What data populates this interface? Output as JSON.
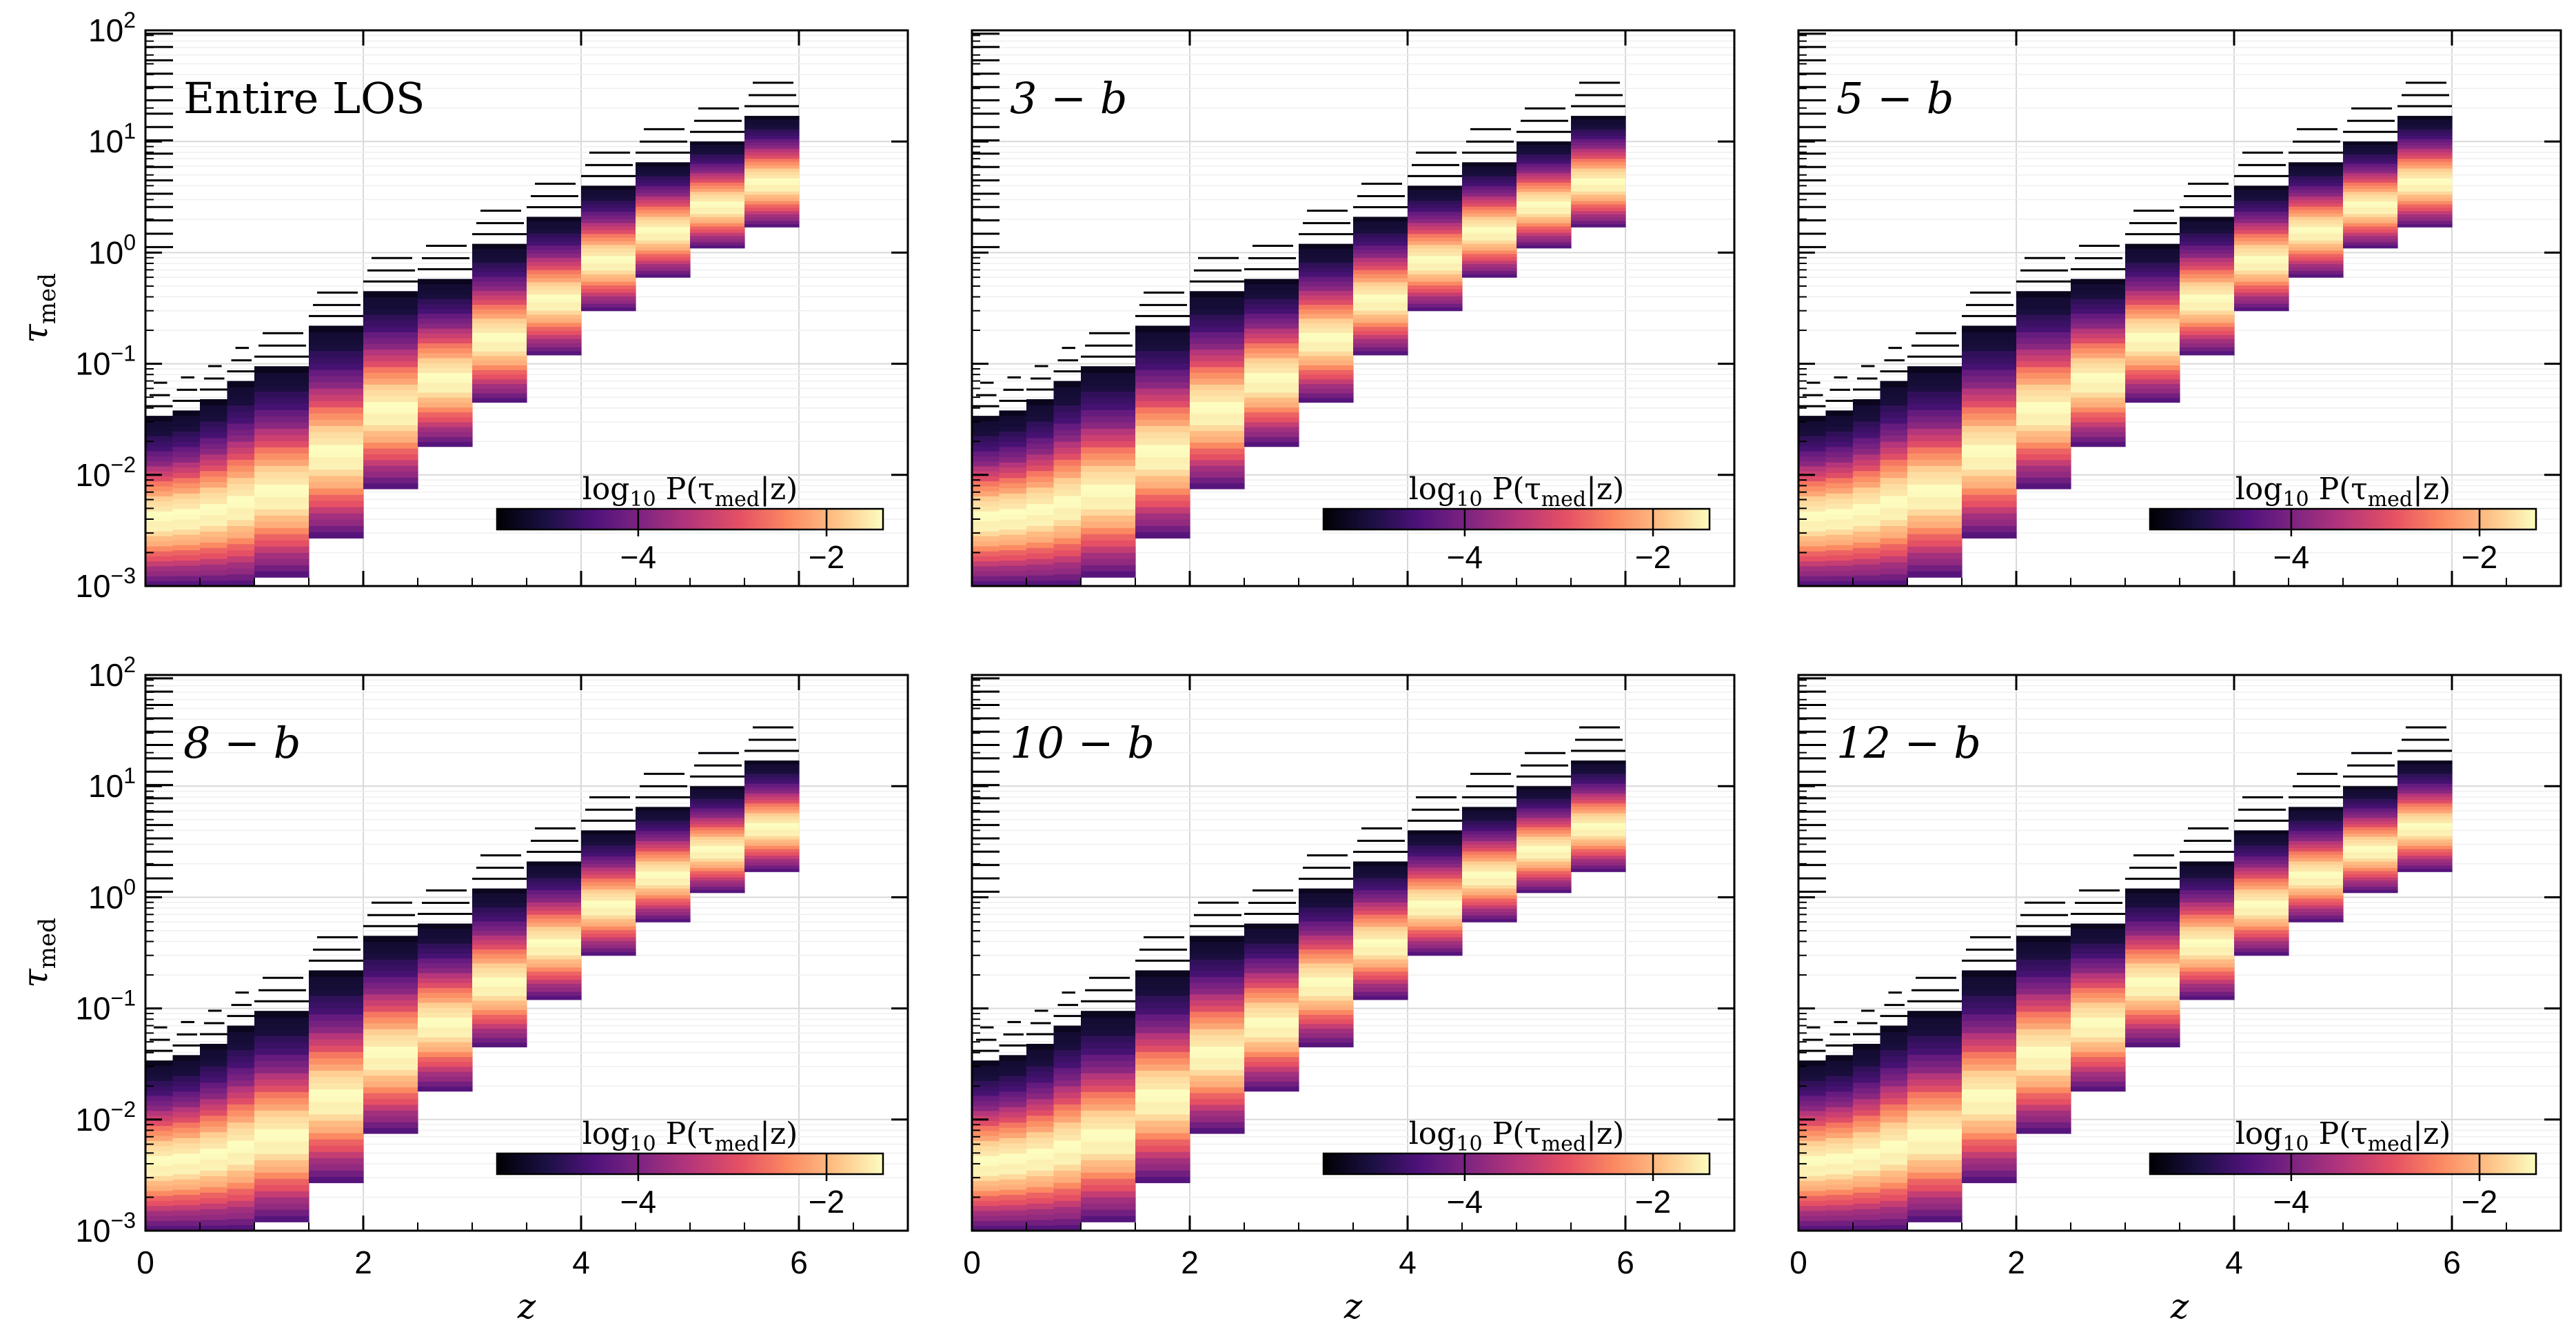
{
  "chart_data": {
    "type": "heatmap",
    "y_scale": "log",
    "xlim": [
      0,
      7
    ],
    "ylim": [
      0.001,
      100
    ],
    "x_ticks": [
      0,
      2,
      4,
      6
    ],
    "x_tick_labels": [
      "0",
      "2",
      "4",
      "6"
    ],
    "y_ticks": [
      0.001,
      0.01,
      0.1,
      1,
      10,
      100
    ],
    "y_tick_labels": [
      {
        "base": "10",
        "exp": "−3"
      },
      {
        "base": "10",
        "exp": "−2"
      },
      {
        "base": "10",
        "exp": "−1"
      },
      {
        "base": "10",
        "exp": "0"
      },
      {
        "base": "10",
        "exp": "1"
      },
      {
        "base": "10",
        "exp": "2"
      }
    ],
    "xlabel": "z",
    "ylabel_main": "τ",
    "ylabel_sub": "med",
    "grid": true,
    "colormap": "magma",
    "colors": {
      "dark": "#000004",
      "purple": "#51127c",
      "magenta": "#b73779",
      "orange": "#fc8961",
      "pale": "#fcfdbf"
    },
    "colorbar": {
      "label_prefix": "log",
      "label_base": "10",
      "label_body": " P(τ",
      "label_sub": "med",
      "label_suffix": "|z)",
      "range": [
        -5.5,
        -1.4
      ],
      "ticks": [
        -4,
        -2
      ],
      "tick_labels": [
        "−4",
        "−2"
      ],
      "placement": "lower-right"
    },
    "redshift_bins": [
      {
        "z_lo": 0.0,
        "z_hi": 0.25,
        "tau_min": 0.001,
        "tau_max": 0.034
      },
      {
        "z_lo": 0.25,
        "z_hi": 0.5,
        "tau_min": 0.001,
        "tau_max": 0.038
      },
      {
        "z_lo": 0.5,
        "z_hi": 0.75,
        "tau_min": 0.001,
        "tau_max": 0.048
      },
      {
        "z_lo": 0.75,
        "z_hi": 1.0,
        "tau_min": 0.001,
        "tau_max": 0.07
      },
      {
        "z_lo": 1.0,
        "z_hi": 1.5,
        "tau_min": 0.0012,
        "tau_max": 0.095
      },
      {
        "z_lo": 1.5,
        "z_hi": 2.0,
        "tau_min": 0.0027,
        "tau_max": 0.22
      },
      {
        "z_lo": 2.0,
        "z_hi": 2.5,
        "tau_min": 0.0075,
        "tau_max": 0.45
      },
      {
        "z_lo": 2.5,
        "z_hi": 3.0,
        "tau_min": 0.018,
        "tau_max": 0.58
      },
      {
        "z_lo": 3.0,
        "z_hi": 3.5,
        "tau_min": 0.045,
        "tau_max": 1.2
      },
      {
        "z_lo": 3.5,
        "z_hi": 4.0,
        "tau_min": 0.12,
        "tau_max": 2.1
      },
      {
        "z_lo": 4.0,
        "z_hi": 4.5,
        "tau_min": 0.3,
        "tau_max": 4.0
      },
      {
        "z_lo": 4.5,
        "z_hi": 5.0,
        "tau_min": 0.6,
        "tau_max": 6.5
      },
      {
        "z_lo": 5.0,
        "z_hi": 5.5,
        "tau_min": 1.1,
        "tau_max": 10.0
      },
      {
        "z_lo": 5.5,
        "z_hi": 6.0,
        "tau_min": 1.7,
        "tau_max": 17.0
      }
    ],
    "panels": [
      {
        "label_text": "Entire LOS",
        "label_math": "",
        "show_ylabel": true,
        "show_yticklabels": true,
        "show_xlabel": false
      },
      {
        "label_text": "",
        "label_math": "3 − b",
        "show_ylabel": false,
        "show_yticklabels": false,
        "show_xlabel": false
      },
      {
        "label_text": "",
        "label_math": "5 − b",
        "show_ylabel": false,
        "show_yticklabels": false,
        "show_xlabel": false
      },
      {
        "label_text": "",
        "label_math": "8 − b",
        "show_ylabel": true,
        "show_yticklabels": true,
        "show_xlabel": true
      },
      {
        "label_text": "",
        "label_math": "10 − b",
        "show_ylabel": false,
        "show_yticklabels": false,
        "show_xlabel": true
      },
      {
        "label_text": "",
        "label_math": "12 − b",
        "show_ylabel": false,
        "show_yticklabels": false,
        "show_xlabel": true
      }
    ]
  }
}
